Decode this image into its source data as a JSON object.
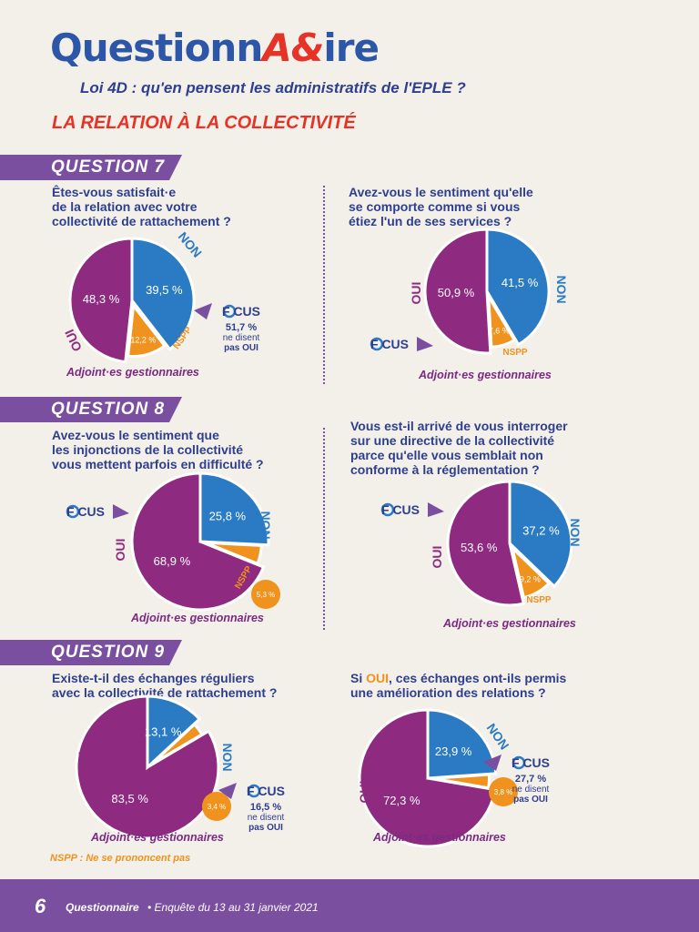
{
  "header": {
    "logo_part1": "Questionn",
    "logo_amp": "A&",
    "logo_part2": "ire",
    "subtitle": "Loi 4D : qu'en pensent les administratifs de l'EPLE ?",
    "section_title": "LA RELATION À LA COLLECTIVITÉ"
  },
  "sections": {
    "q7": "QUESTION 7",
    "q8": "QUESTION 8",
    "q9": "QUESTION 9"
  },
  "questions": {
    "q7a": [
      "Êtes-vous satisfait·e",
      "de la relation avec votre",
      "collectivité de rattachement ?"
    ],
    "q7b": [
      "Avez-vous le sentiment qu'elle",
      "se comporte comme si vous",
      "étiez l'un de ses services ?"
    ],
    "q8a": [
      "Avez-vous le sentiment que",
      "les injonctions de la collectivité",
      "vous mettent parfois en difficulté ?"
    ],
    "q8b": [
      "Vous est-il arrivé de vous interroger",
      "sur une directive de la collectivité",
      "parce qu'elle vous semblait non",
      "conforme à la réglementation ?"
    ],
    "q9a": [
      "Existe-t-il des échanges réguliers",
      "avec la collectivité de rattachement ?"
    ],
    "q9b_prefix": "Si ",
    "q9b_highlight": "OUI",
    "q9b_rest": ", ces échanges ont-ils permis",
    "q9b_line2": "une amélioration des relations ?"
  },
  "legend_note": "NSPP : Ne se prononcent pas",
  "footer": {
    "page_number": "6",
    "brand": "Questionnaire",
    "date": "• Enquête du 13 au 31 janvier 2021"
  },
  "focus_label": "F CUS",
  "colors": {
    "oui": "#8e2a80",
    "non": "#2a7bc4",
    "nspp": "#f0921e",
    "banner": "#7b4fa0",
    "title_red": "#e63327"
  },
  "chart_data": [
    {
      "type": "pie",
      "id": "q7a",
      "caption": "Adjoint·es gestionnaires",
      "categories": [
        "OUI",
        "NON",
        "NSPP"
      ],
      "values": [
        48.3,
        39.5,
        12.2
      ],
      "value_labels": [
        "48,3 %",
        "39,5 %",
        "12,2 %"
      ],
      "focus": [
        "51,7 %",
        "ne disent",
        "pas OUI"
      ]
    },
    {
      "type": "pie",
      "id": "q7b",
      "caption": "Adjoint·es gestionnaires",
      "categories": [
        "OUI",
        "NON",
        "NSPP"
      ],
      "values": [
        50.9,
        41.5,
        7.6
      ],
      "value_labels": [
        "50,9 %",
        "41,5 %",
        "7,6 %"
      ]
    },
    {
      "type": "pie",
      "id": "q8a",
      "caption": "Adjoint·es gestionnaires",
      "categories": [
        "OUI",
        "NON",
        "NSPP"
      ],
      "values": [
        68.9,
        25.8,
        5.3
      ],
      "value_labels": [
        "68,9 %",
        "25,8 %",
        "5,3 %"
      ]
    },
    {
      "type": "pie",
      "id": "q8b",
      "caption": "Adjoint·es gestionnaires",
      "categories": [
        "OUI",
        "NON",
        "NSPP"
      ],
      "values": [
        53.6,
        37.2,
        9.2
      ],
      "value_labels": [
        "53,6 %",
        "37,2 %",
        "9,2 %"
      ]
    },
    {
      "type": "pie",
      "id": "q9a",
      "caption": "Adjoint·es gestionnaires",
      "categories": [
        "OUI",
        "NON",
        "NSPP"
      ],
      "values": [
        83.5,
        13.1,
        3.4
      ],
      "value_labels": [
        "83,5 %",
        "13,1 %",
        "3,4 %"
      ],
      "focus": [
        "16,5 %",
        "ne disent",
        "pas OUI"
      ]
    },
    {
      "type": "pie",
      "id": "q9b",
      "caption": "Adjoint·es gestionnaires",
      "categories": [
        "OUI",
        "NON",
        "NSPP"
      ],
      "values": [
        72.3,
        23.9,
        3.8
      ],
      "value_labels": [
        "72,3 %",
        "23,9 %",
        "3,8 %"
      ],
      "focus": [
        "27,7 %",
        "ne disent",
        "pas OUI"
      ]
    }
  ]
}
